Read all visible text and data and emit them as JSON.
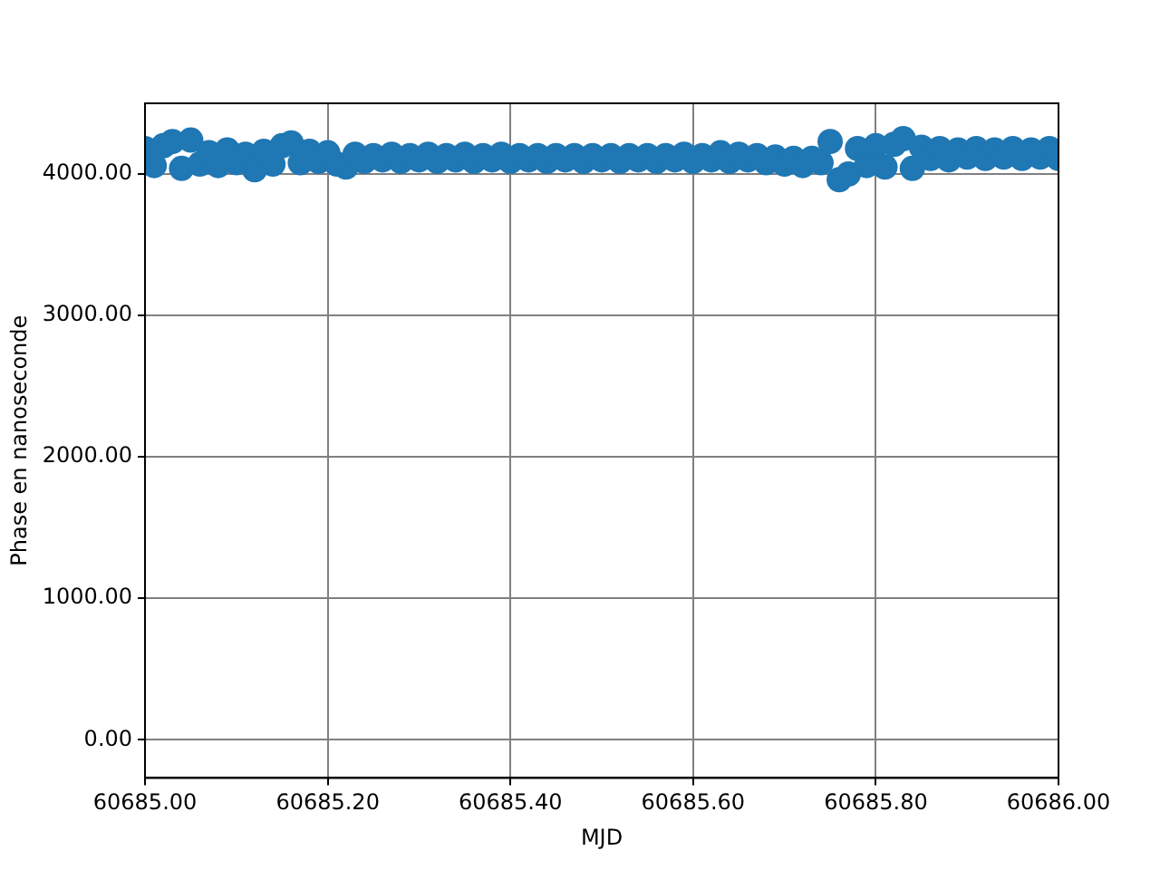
{
  "chart_data": {
    "type": "scatter",
    "xlabel": "MJD",
    "ylabel": "Phase en nanoseconde",
    "x": [
      60685.0,
      60685.01,
      60685.02,
      60685.03,
      60685.04,
      60685.05,
      60685.06,
      60685.07,
      60685.08,
      60685.09,
      60685.1,
      60685.11,
      60685.12,
      60685.13,
      60685.14,
      60685.15,
      60685.16,
      60685.17,
      60685.18,
      60685.19,
      60685.2,
      60685.21,
      60685.22,
      60685.23,
      60685.24,
      60685.25,
      60685.26,
      60685.27,
      60685.28,
      60685.29,
      60685.3,
      60685.31,
      60685.32,
      60685.33,
      60685.34,
      60685.35,
      60685.36,
      60685.37,
      60685.38,
      60685.39,
      60685.4,
      60685.41,
      60685.42,
      60685.43,
      60685.44,
      60685.45,
      60685.46,
      60685.47,
      60685.48,
      60685.49,
      60685.5,
      60685.51,
      60685.52,
      60685.53,
      60685.54,
      60685.55,
      60685.56,
      60685.57,
      60685.58,
      60685.59,
      60685.6,
      60685.61,
      60685.62,
      60685.63,
      60685.64,
      60685.65,
      60685.66,
      60685.67,
      60685.68,
      60685.69,
      60685.7,
      60685.71,
      60685.72,
      60685.73,
      60685.74,
      60685.75,
      60685.76,
      60685.77,
      60685.78,
      60685.79,
      60685.8,
      60685.81,
      60685.82,
      60685.83,
      60685.84,
      60685.85,
      60685.86,
      60685.87,
      60685.88,
      60685.89,
      60685.9,
      60685.91,
      60685.92,
      60685.93,
      60685.94,
      60685.95,
      60685.96,
      60685.97,
      60685.98,
      60685.99,
      60686.0
    ],
    "series": [
      {
        "color": "#1f77b4",
        "values": [
          4180,
          4060,
          4200,
          4230,
          4040,
          4240,
          4070,
          4150,
          4060,
          4170,
          4080,
          4140,
          4030,
          4160,
          4070,
          4200,
          4220,
          4080,
          4160,
          4090,
          4150,
          4070,
          4050,
          4140,
          4090,
          4130,
          4100,
          4140,
          4090,
          4130,
          4100,
          4140,
          4090,
          4130,
          4100,
          4140,
          4090,
          4130,
          4100,
          4140,
          4090,
          4130,
          4100,
          4130,
          4090,
          4130,
          4100,
          4130,
          4090,
          4130,
          4100,
          4130,
          4090,
          4130,
          4100,
          4130,
          4090,
          4130,
          4100,
          4140,
          4090,
          4130,
          4100,
          4150,
          4090,
          4140,
          4100,
          4130,
          4080,
          4120,
          4070,
          4110,
          4060,
          4110,
          4080,
          4230,
          3960,
          4000,
          4180,
          4060,
          4200,
          4050,
          4210,
          4250,
          4040,
          4190,
          4110,
          4180,
          4100,
          4170,
          4120,
          4180,
          4110,
          4170,
          4120,
          4180,
          4110,
          4170,
          4120,
          4180,
          4110
        ]
      }
    ],
    "xlim": [
      60685.0,
      60686.0
    ],
    "xticks": [
      {
        "value": 60685.0,
        "label": "60685.00"
      },
      {
        "value": 60685.2,
        "label": "60685.20"
      },
      {
        "value": 60685.4,
        "label": "60685.40"
      },
      {
        "value": 60685.6,
        "label": "60685.60"
      },
      {
        "value": 60685.8,
        "label": "60685.80"
      },
      {
        "value": 60686.0,
        "label": "60686.00"
      }
    ],
    "ylim": [
      -270,
      4500
    ],
    "yticks": [
      {
        "value": 0,
        "label": "0.00"
      },
      {
        "value": 1000,
        "label": "1000.00"
      },
      {
        "value": 2000,
        "label": "2000.00"
      },
      {
        "value": 3000,
        "label": "3000.00"
      },
      {
        "value": 4000,
        "label": "4000.00"
      }
    ],
    "grid": true,
    "marker": "circle"
  }
}
